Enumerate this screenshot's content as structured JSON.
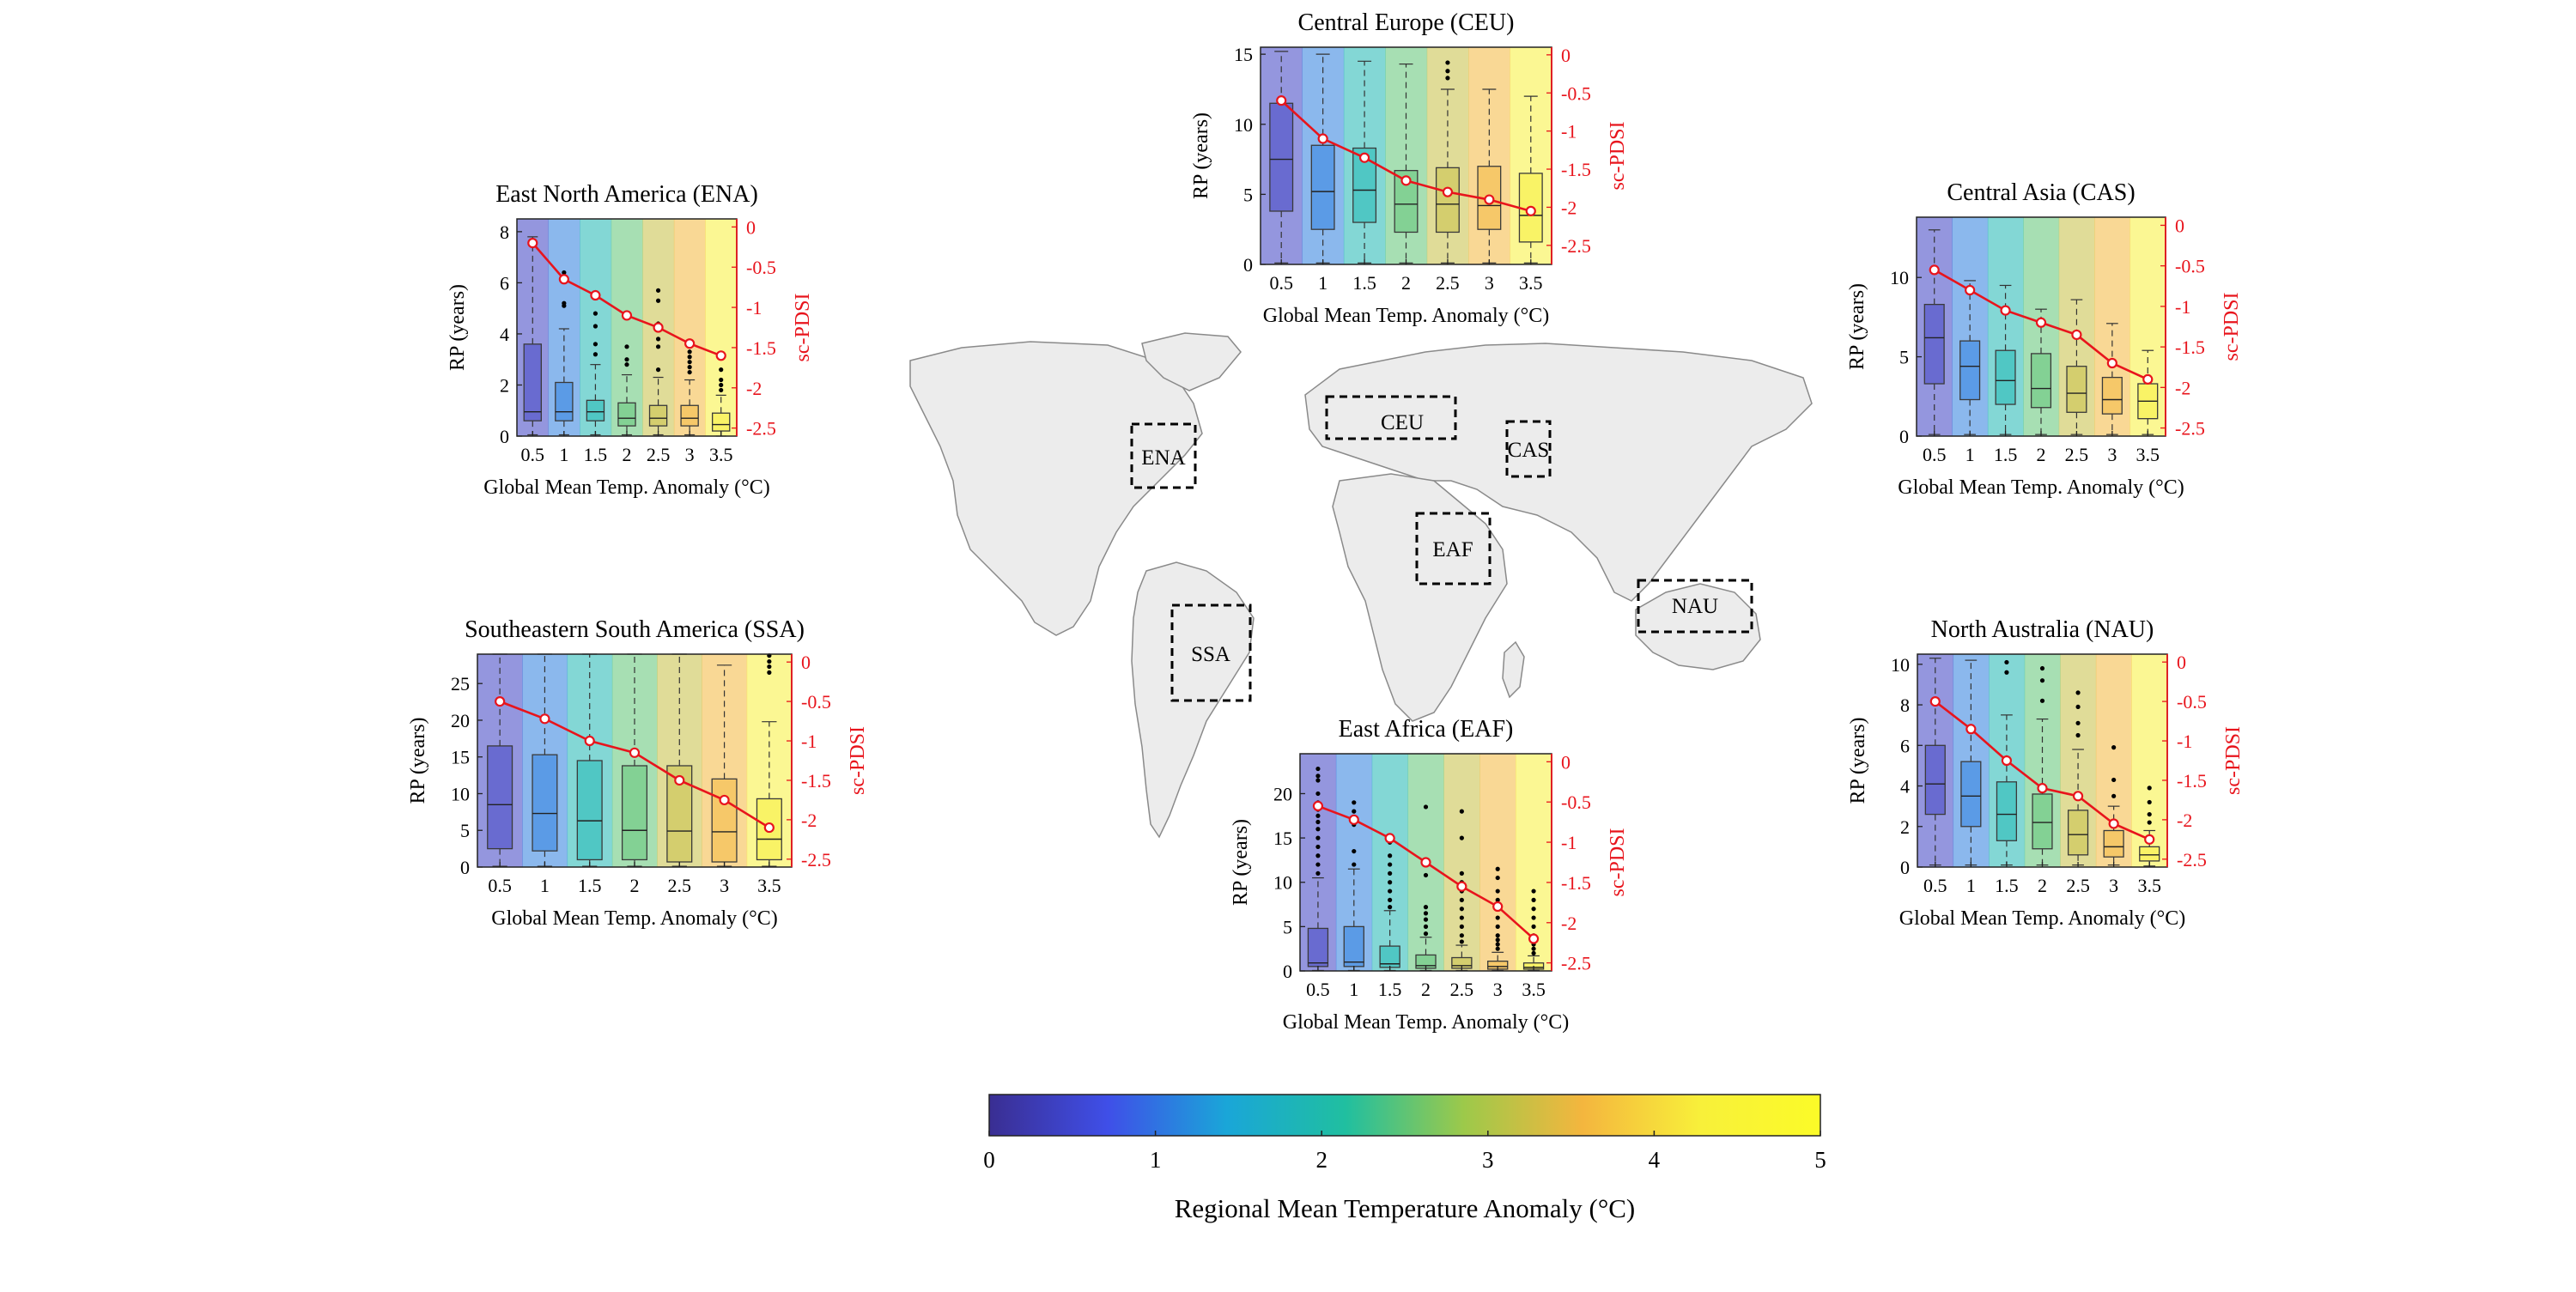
{
  "figure": {
    "x_ticks": [
      "0.5",
      "1",
      "1.5",
      "2",
      "2.5",
      "3",
      "3.5"
    ],
    "xlabel": "Global Mean Temp. Anomaly (°C)",
    "ylabel": "RP (years)",
    "y2label": "sc-PDSI",
    "y2_ticks": [
      "0",
      "-0.5",
      "-1",
      "-1.5",
      "-2",
      "-2.5"
    ],
    "colors": {
      "line": "#e8141c",
      "box": "#4a4a4a"
    }
  },
  "map": {
    "regions": [
      "ENA",
      "CEU",
      "CAS",
      "EAF",
      "SSA",
      "NAU"
    ]
  },
  "colorbar": {
    "label": "Regional Mean Temperature Anomaly (°C)",
    "ticks": [
      "0",
      "1",
      "2",
      "3",
      "4",
      "5"
    ],
    "range": [
      0,
      5
    ],
    "colormap": [
      "#3a2e92",
      "#3f4fe8",
      "#1aa6d8",
      "#20bfa0",
      "#9dc94a",
      "#f4b63e",
      "#f8f03a",
      "#fbfb28"
    ]
  },
  "chart_data": [
    {
      "id": "ENA",
      "type": "box",
      "title": "East North America  (ENA)",
      "x": [
        0.5,
        1,
        1.5,
        2,
        2.5,
        3,
        3.5
      ],
      "ylim": [
        0,
        8.5
      ],
      "yticks": [
        0,
        2,
        4,
        6,
        8
      ],
      "y2lim": [
        -2.6,
        0.1
      ],
      "band_temps": [
        0.4,
        1.1,
        1.9,
        2.5,
        3.2,
        3.6,
        4.3
      ],
      "boxes": [
        {
          "q1": 0.6,
          "med": 0.95,
          "q3": 3.6,
          "wlo": 0.05,
          "whi": 7.8,
          "out": []
        },
        {
          "q1": 0.6,
          "med": 0.95,
          "q3": 2.1,
          "wlo": 0.05,
          "whi": 4.2,
          "out": [
            5.1,
            5.2,
            6.2,
            6.4
          ]
        },
        {
          "q1": 0.6,
          "med": 0.95,
          "q3": 1.4,
          "wlo": 0.05,
          "whi": 2.8,
          "out": [
            3.2,
            3.6,
            4.3,
            4.8
          ]
        },
        {
          "q1": 0.4,
          "med": 0.7,
          "q3": 1.3,
          "wlo": 0.05,
          "whi": 2.4,
          "out": [
            2.8,
            3.0,
            3.5
          ]
        },
        {
          "q1": 0.4,
          "med": 0.7,
          "q3": 1.2,
          "wlo": 0.05,
          "whi": 2.3,
          "out": [
            2.6,
            3.5,
            3.8,
            4.4,
            5.3,
            5.7
          ]
        },
        {
          "q1": 0.4,
          "med": 0.7,
          "q3": 1.2,
          "wlo": 0.05,
          "whi": 2.2,
          "out": [
            2.5,
            2.7,
            2.9,
            3.1,
            3.3,
            3.6
          ]
        },
        {
          "q1": 0.2,
          "med": 0.45,
          "q3": 0.9,
          "wlo": 0.0,
          "whi": 1.6,
          "out": [
            1.8,
            2.0,
            2.2,
            2.6
          ]
        }
      ],
      "pdsi": [
        -0.2,
        -0.65,
        -0.85,
        -1.1,
        -1.25,
        -1.45,
        -1.6
      ]
    },
    {
      "id": "CEU",
      "type": "box",
      "title": "Central Europe  (CEU)",
      "x": [
        0.5,
        1,
        1.5,
        2,
        2.5,
        3,
        3.5
      ],
      "ylim": [
        0,
        15.5
      ],
      "yticks": [
        0,
        5,
        10,
        15
      ],
      "y2lim": [
        -2.75,
        0.1
      ],
      "band_temps": [
        0.4,
        1.1,
        1.9,
        2.5,
        3.2,
        3.6,
        4.3
      ],
      "boxes": [
        {
          "q1": 3.8,
          "med": 7.5,
          "q3": 11.5,
          "wlo": 0.1,
          "whi": 15.2,
          "out": []
        },
        {
          "q1": 2.5,
          "med": 5.2,
          "q3": 8.5,
          "wlo": 0.1,
          "whi": 15.0,
          "out": []
        },
        {
          "q1": 3.0,
          "med": 5.3,
          "q3": 8.3,
          "wlo": 0.1,
          "whi": 14.5,
          "out": []
        },
        {
          "q1": 2.3,
          "med": 4.3,
          "q3": 6.7,
          "wlo": 0.1,
          "whi": 14.3,
          "out": []
        },
        {
          "q1": 2.3,
          "med": 4.3,
          "q3": 6.9,
          "wlo": 0.1,
          "whi": 12.5,
          "out": [
            13.3,
            13.8,
            14.4
          ]
        },
        {
          "q1": 2.5,
          "med": 4.2,
          "q3": 7.0,
          "wlo": 0.1,
          "whi": 12.5,
          "out": []
        },
        {
          "q1": 1.6,
          "med": 3.5,
          "q3": 6.5,
          "wlo": 0.1,
          "whi": 12.0,
          "out": []
        }
      ],
      "pdsi": [
        -0.6,
        -1.1,
        -1.35,
        -1.65,
        -1.8,
        -1.9,
        -2.05
      ]
    },
    {
      "id": "CAS",
      "type": "box",
      "title": "Central Asia  (CAS)",
      "x": [
        0.5,
        1,
        1.5,
        2,
        2.5,
        3,
        3.5
      ],
      "ylim": [
        0,
        13.8
      ],
      "yticks": [
        0,
        5,
        10
      ],
      "y2lim": [
        -2.6,
        0.1
      ],
      "band_temps": [
        0.4,
        1.1,
        1.9,
        2.5,
        3.2,
        3.6,
        4.3
      ],
      "boxes": [
        {
          "q1": 3.3,
          "med": 6.2,
          "q3": 8.3,
          "wlo": 0.1,
          "whi": 13.0,
          "out": []
        },
        {
          "q1": 2.3,
          "med": 4.4,
          "q3": 6.0,
          "wlo": 0.1,
          "whi": 9.8,
          "out": []
        },
        {
          "q1": 2.0,
          "med": 3.5,
          "q3": 5.4,
          "wlo": 0.1,
          "whi": 9.5,
          "out": []
        },
        {
          "q1": 1.8,
          "med": 3.0,
          "q3": 5.2,
          "wlo": 0.1,
          "whi": 8.0,
          "out": []
        },
        {
          "q1": 1.5,
          "med": 2.7,
          "q3": 4.4,
          "wlo": 0.1,
          "whi": 8.6,
          "out": []
        },
        {
          "q1": 1.4,
          "med": 2.3,
          "q3": 3.7,
          "wlo": 0.1,
          "whi": 7.1,
          "out": []
        },
        {
          "q1": 1.1,
          "med": 2.2,
          "q3": 3.3,
          "wlo": 0.1,
          "whi": 5.4,
          "out": []
        }
      ],
      "pdsi": [
        -0.55,
        -0.8,
        -1.05,
        -1.2,
        -1.35,
        -1.7,
        -1.9
      ]
    },
    {
      "id": "SSA",
      "type": "box",
      "title": "Southeastern South America  (SSA)",
      "x": [
        0.5,
        1,
        1.5,
        2,
        2.5,
        3,
        3.5
      ],
      "ylim": [
        0,
        29
      ],
      "yticks": [
        0,
        5,
        10,
        15,
        20,
        25
      ],
      "y2lim": [
        -2.6,
        0.1
      ],
      "band_temps": [
        0.4,
        1.1,
        1.9,
        2.5,
        3.2,
        3.6,
        4.3
      ],
      "boxes": [
        {
          "q1": 2.5,
          "med": 8.5,
          "q3": 16.5,
          "wlo": 0.1,
          "whi": 29.0,
          "out": []
        },
        {
          "q1": 2.2,
          "med": 7.3,
          "q3": 15.3,
          "wlo": 0.1,
          "whi": 29.0,
          "out": []
        },
        {
          "q1": 1.0,
          "med": 6.3,
          "q3": 14.5,
          "wlo": 0.1,
          "whi": 29.0,
          "out": []
        },
        {
          "q1": 1.0,
          "med": 5.0,
          "q3": 13.8,
          "wlo": 0.1,
          "whi": 29.0,
          "out": []
        },
        {
          "q1": 0.7,
          "med": 4.9,
          "q3": 13.8,
          "wlo": 0.1,
          "whi": 29.0,
          "out": []
        },
        {
          "q1": 0.7,
          "med": 4.8,
          "q3": 12.0,
          "wlo": 0.1,
          "whi": 27.5,
          "out": []
        },
        {
          "q1": 1.0,
          "med": 3.8,
          "q3": 9.3,
          "wlo": 0.1,
          "whi": 19.8,
          "out": [
            26.5,
            27.3,
            28.0,
            28.8
          ]
        }
      ],
      "pdsi": [
        -0.5,
        -0.72,
        -1.0,
        -1.15,
        -1.5,
        -1.75,
        -2.1
      ]
    },
    {
      "id": "EAF",
      "type": "box",
      "title": "East Africa  (EAF)",
      "x": [
        0.5,
        1,
        1.5,
        2,
        2.5,
        3,
        3.5
      ],
      "ylim": [
        0,
        24.5
      ],
      "yticks": [
        0,
        5,
        10,
        15,
        20
      ],
      "y2lim": [
        -2.6,
        0.1
      ],
      "band_temps": [
        0.4,
        1.1,
        1.9,
        2.5,
        3.2,
        3.6,
        4.3
      ],
      "boxes": [
        {
          "q1": 0.5,
          "med": 0.9,
          "q3": 4.8,
          "wlo": 0.05,
          "whi": 10.5,
          "out": [
            11.0,
            12.0,
            13.0,
            14.0,
            15.0,
            16.0,
            16.8,
            17.5,
            18.2,
            19.0,
            20.0,
            21.5,
            22.0,
            22.8
          ]
        },
        {
          "q1": 0.5,
          "med": 1.0,
          "q3": 5.0,
          "wlo": 0.05,
          "whi": 11.5,
          "out": [
            12.0,
            13.5,
            16.5,
            18.0,
            19.0
          ]
        },
        {
          "q1": 0.4,
          "med": 0.8,
          "q3": 2.8,
          "wlo": 0.05,
          "whi": 6.8,
          "out": [
            7.2,
            8.0,
            9.0,
            10.0,
            11.0,
            12.0,
            13.0,
            14.5
          ]
        },
        {
          "q1": 0.3,
          "med": 0.6,
          "q3": 1.8,
          "wlo": 0.05,
          "whi": 3.8,
          "out": [
            4.2,
            5.0,
            5.8,
            6.5,
            7.2,
            10.8,
            18.5
          ]
        },
        {
          "q1": 0.3,
          "med": 0.6,
          "q3": 1.5,
          "wlo": 0.05,
          "whi": 2.9,
          "out": [
            3.3,
            4.0,
            5.0,
            6.0,
            7.0,
            8.0,
            9.0,
            10.0,
            11.0,
            15.0,
            18.0
          ]
        },
        {
          "q1": 0.2,
          "med": 0.5,
          "q3": 1.1,
          "wlo": 0.05,
          "whi": 2.1,
          "out": [
            2.5,
            3.0,
            3.5,
            4.0,
            5.0,
            6.0,
            7.0,
            7.5,
            8.0,
            9.0,
            10.5,
            11.5
          ]
        },
        {
          "q1": 0.2,
          "med": 0.4,
          "q3": 0.9,
          "wlo": 0.05,
          "whi": 1.7,
          "out": [
            2.0,
            2.5,
            3.0,
            3.5,
            4.0,
            5.0,
            6.0,
            7.0,
            8.0,
            9.0
          ]
        }
      ],
      "pdsi": [
        -0.55,
        -0.72,
        -0.95,
        -1.25,
        -1.55,
        -1.8,
        -2.2
      ]
    },
    {
      "id": "NAU",
      "type": "box",
      "title": "North Australia  (NAU)",
      "x": [
        0.5,
        1,
        1.5,
        2,
        2.5,
        3,
        3.5
      ],
      "ylim": [
        0,
        10.5
      ],
      "yticks": [
        0,
        2,
        4,
        6,
        8,
        10
      ],
      "y2lim": [
        -2.6,
        0.1
      ],
      "band_temps": [
        0.4,
        1.1,
        1.9,
        2.5,
        3.2,
        3.6,
        4.3
      ],
      "boxes": [
        {
          "q1": 2.6,
          "med": 4.1,
          "q3": 6.0,
          "wlo": 0.1,
          "whi": 10.3,
          "out": []
        },
        {
          "q1": 2.0,
          "med": 3.5,
          "q3": 5.2,
          "wlo": 0.1,
          "whi": 10.2,
          "out": []
        },
        {
          "q1": 1.3,
          "med": 2.6,
          "q3": 4.2,
          "wlo": 0.1,
          "whi": 7.5,
          "out": [
            9.6,
            10.1
          ]
        },
        {
          "q1": 0.9,
          "med": 2.2,
          "q3": 3.6,
          "wlo": 0.1,
          "whi": 7.3,
          "out": [
            8.2,
            9.2,
            9.8
          ]
        },
        {
          "q1": 0.6,
          "med": 1.6,
          "q3": 2.8,
          "wlo": 0.1,
          "whi": 5.8,
          "out": [
            6.5,
            7.1,
            7.9,
            8.6
          ]
        },
        {
          "q1": 0.5,
          "med": 1.0,
          "q3": 1.8,
          "wlo": 0.1,
          "whi": 3.0,
          "out": [
            3.5,
            4.3,
            5.9
          ]
        },
        {
          "q1": 0.3,
          "med": 0.6,
          "q3": 1.0,
          "wlo": 0.05,
          "whi": 1.8,
          "out": [
            2.2,
            2.6,
            3.2,
            3.9
          ]
        }
      ],
      "pdsi": [
        -0.5,
        -0.85,
        -1.25,
        -1.6,
        -1.7,
        -2.05,
        -2.25
      ]
    }
  ]
}
